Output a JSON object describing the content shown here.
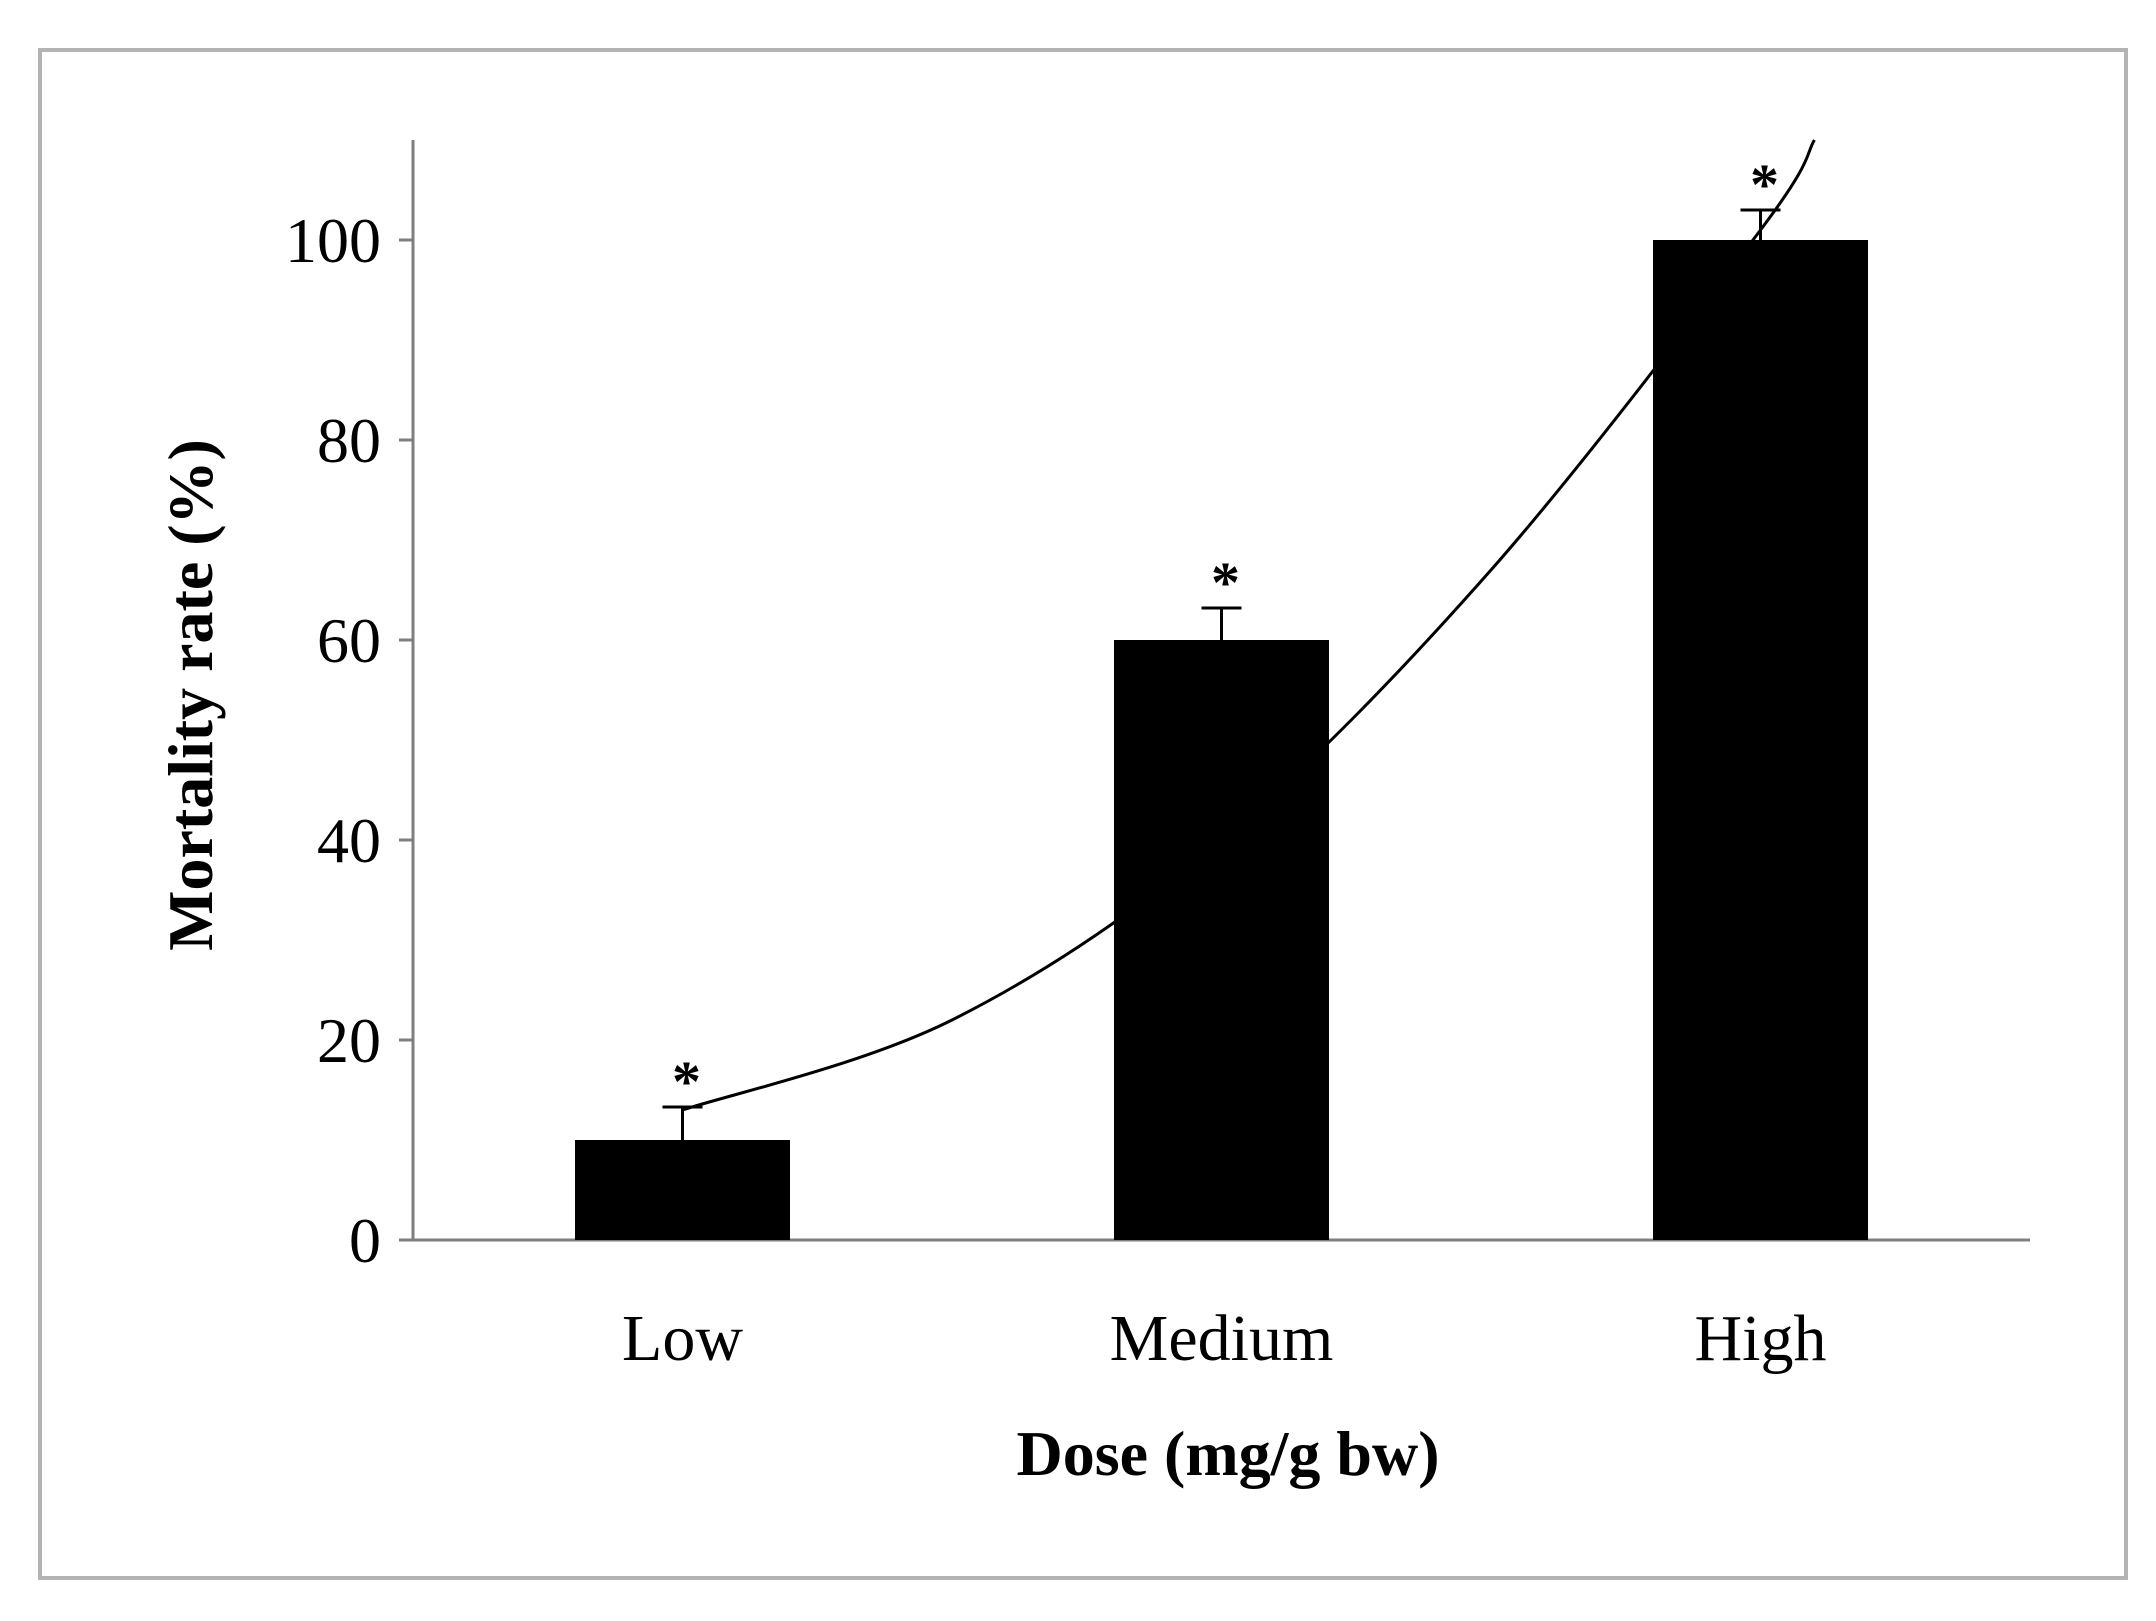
{
  "chart_data": {
    "type": "bar",
    "title": "",
    "xlabel": "Dose (mg/g bw)",
    "ylabel": "Mortality rate (%)",
    "ylim": [
      0,
      110
    ],
    "yticks": [
      0,
      20,
      40,
      60,
      80,
      100
    ],
    "grid": false,
    "legend": "none",
    "categories": [
      "Low",
      "Medium",
      "High"
    ],
    "series": [
      {
        "name": "Mortality rate",
        "values": [
          10,
          60,
          100
        ],
        "errors": [
          3.3,
          3.2,
          3.0
        ],
        "significance": [
          "*",
          "*",
          "*"
        ]
      }
    ],
    "trendline": {
      "type": "exponential",
      "points": [
        {
          "x": 1,
          "y": 13
        },
        {
          "x": 1.5,
          "y": 22
        },
        {
          "x": 2,
          "y": 40
        },
        {
          "x": 2.5,
          "y": 67
        },
        {
          "x": 3,
          "y": 101
        },
        {
          "x": 3.1,
          "y": 110
        }
      ]
    },
    "colors": {
      "bars": "#000000",
      "frame": "#b3b3b3",
      "axes": "#7f7f7f",
      "trendline": "#000000"
    }
  }
}
